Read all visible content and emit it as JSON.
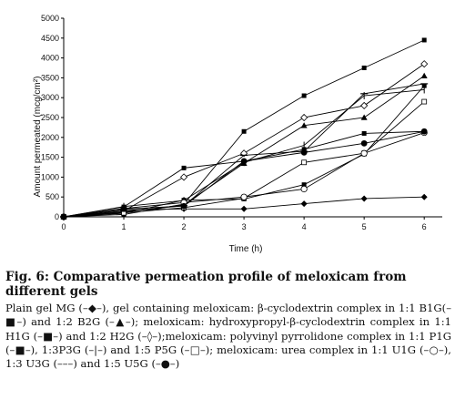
{
  "chart_data": {
    "type": "line",
    "title": "",
    "xlabel": "Time (h)",
    "ylabel": "Amount permeated (mcg/cm²)",
    "xlim": [
      0,
      6.3
    ],
    "ylim": [
      0,
      5000
    ],
    "x_ticks": [
      "0",
      "1",
      "2",
      "3",
      "4",
      "5",
      "6"
    ],
    "y_ticks": [
      "0",
      "500",
      "1000",
      "1500",
      "2000",
      "2500",
      "3000",
      "3500",
      "4000",
      "4500",
      "5000"
    ],
    "grid": false,
    "legend": "none",
    "x": [
      0,
      1,
      2,
      3,
      4,
      5,
      6
    ],
    "series": [
      {
        "marker": "diamond-filled",
        "values": [
          0,
          180,
          200,
          200,
          330,
          460,
          500
        ]
      },
      {
        "marker": "square-filled",
        "values": [
          0,
          250,
          1230,
          1400,
          1700,
          2100,
          2150
        ]
      },
      {
        "marker": "triangle-filled",
        "values": [
          0,
          120,
          300,
          1350,
          2300,
          2500,
          3550
        ]
      },
      {
        "marker": "square-filled",
        "values": [
          0,
          60,
          320,
          2150,
          3050,
          3750,
          4450
        ]
      },
      {
        "marker": "diamond-open",
        "values": [
          0,
          150,
          1000,
          1600,
          2500,
          2800,
          3850
        ]
      },
      {
        "marker": "square-filled",
        "values": [
          0,
          90,
          420,
          450,
          810,
          1580,
          3300
        ]
      },
      {
        "marker": "bar",
        "values": [
          0,
          260,
          410,
          1370,
          1800,
          3050,
          3200
        ]
      },
      {
        "marker": "square-open",
        "values": [
          0,
          100,
          230,
          470,
          1370,
          1600,
          2900
        ]
      },
      {
        "marker": "circle-open",
        "values": [
          0,
          210,
          360,
          500,
          700,
          1600,
          2120
        ]
      },
      {
        "marker": "dash",
        "values": [
          0,
          140,
          280,
          1550,
          1650,
          3100,
          3350
        ]
      },
      {
        "marker": "circle-filled",
        "values": [
          0,
          200,
          270,
          1400,
          1620,
          1850,
          2150
        ]
      }
    ]
  },
  "caption": {
    "title": "Fig. 6: Comparative permeation profile of meloxicam from different gels",
    "legend_text": "Plain gel MG (–◆–), gel containing meloxicam: β-cyclodextrin complex in 1:1 B1G(–■–) and 1:2 B2G (–▲–); meloxicam: hydroxypropyl-β-cyclodextrin complex in 1:1 H1G (–■–) and 1:2 H2G (–◊–);meloxicam: polyvinyl pyrrolidone complex in 1:1 P1G (–■–), 1:3P3G (–|–) and 1:5 P5G (–□–); meloxicam: urea complex in 1:1 U1G (–○–), 1:3 U3G (–––) and 1:5 U5G (–●–)"
  }
}
